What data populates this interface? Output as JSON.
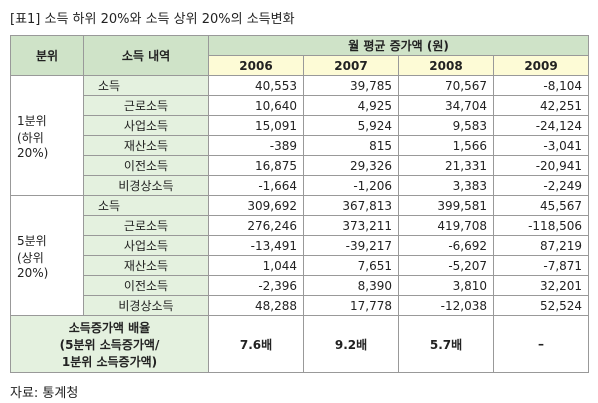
{
  "title": "[표1] 소득 하위 20%와 소득 상위 20%의 소득변화",
  "table": {
    "header": {
      "group": "분위",
      "item": "소득 내역",
      "span": "월 평균 증가액 (원)",
      "years": [
        "2006",
        "2007",
        "2008",
        "2009"
      ]
    },
    "groups": [
      {
        "label": "1분위\n(하위\n20%)",
        "rows": [
          {
            "label": "소득",
            "values": [
              "40,553",
              "39,785",
              "70,567",
              "-8,104"
            ]
          },
          {
            "label": "근로소득",
            "values": [
              "10,640",
              "4,925",
              "34,704",
              "42,251"
            ]
          },
          {
            "label": "사업소득",
            "values": [
              "15,091",
              "5,924",
              "9,583",
              "-24,124"
            ]
          },
          {
            "label": "재산소득",
            "values": [
              "-389",
              "815",
              "1,566",
              "-3,041"
            ]
          },
          {
            "label": "이전소득",
            "values": [
              "16,875",
              "29,326",
              "21,331",
              "-20,941"
            ]
          },
          {
            "label": "비경상소득",
            "values": [
              "-1,664",
              "-1,206",
              "3,383",
              "-2,249"
            ]
          }
        ]
      },
      {
        "label": "5분위\n(상위\n20%)",
        "rows": [
          {
            "label": "소득",
            "values": [
              "309,692",
              "367,813",
              "399,581",
              "45,567"
            ]
          },
          {
            "label": "근로소득",
            "values": [
              "276,246",
              "373,211",
              "419,708",
              "-118,506"
            ]
          },
          {
            "label": "사업소득",
            "values": [
              "-13,491",
              "-39,217",
              "-6,692",
              "87,219"
            ]
          },
          {
            "label": "재산소득",
            "values": [
              "1,044",
              "7,651",
              "-5,207",
              "-7,871"
            ]
          },
          {
            "label": "이전소득",
            "values": [
              "-2,396",
              "8,390",
              "3,810",
              "32,201"
            ]
          },
          {
            "label": "비경상소득",
            "values": [
              "48,288",
              "17,778",
              "-12,038",
              "52,524"
            ]
          }
        ]
      }
    ],
    "ratio": {
      "label": "소득증가액 배율\n(5분위 소득증가액/\n1분위 소득증가액)",
      "values": [
        "7.6배",
        "9.2배",
        "5.7배",
        "–"
      ]
    }
  },
  "source": "자료: 통계청"
}
